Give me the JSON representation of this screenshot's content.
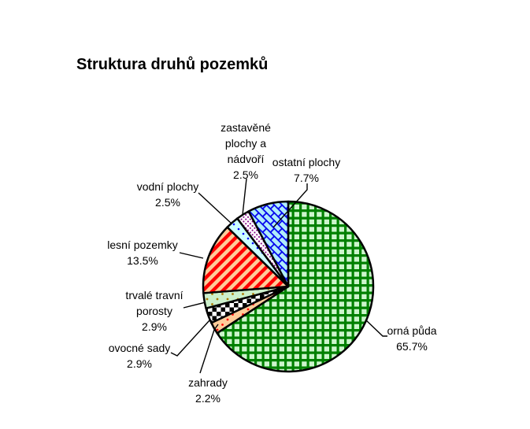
{
  "title": "Struktura druhů pozemků",
  "chart_data": {
    "type": "pie",
    "title": "Struktura druhů pozemků",
    "unit": "%",
    "start_angle_deg": 0,
    "direction": "clockwise",
    "legend": "none",
    "labels_shown_as": "category name and percent with leader lines",
    "slices": [
      {
        "label": "orná půda",
        "value": 65.7,
        "pattern": "green-crosshatch",
        "bg": "#CCF5CC",
        "fg": "#008000"
      },
      {
        "label": "zahrady",
        "value": 2.2,
        "pattern": "peach-red-dots",
        "bg": "#FFCC99",
        "fg": "#FF0000"
      },
      {
        "label": "ovocné sady",
        "value": 2.9,
        "pattern": "checkerboard",
        "bg": "#FFFFFF",
        "fg": "#000000"
      },
      {
        "label": "trvalé travní porosty",
        "value": 2.9,
        "pattern": "green-dots",
        "bg": "#CCF0CC",
        "fg": "#AA7700"
      },
      {
        "label": "lesní pozemky",
        "value": 13.5,
        "pattern": "red-stripes",
        "bg": "#FFCC99",
        "fg": "#FF0000"
      },
      {
        "label": "vodní plochy",
        "value": 2.5,
        "pattern": "cyan-dots",
        "bg": "#CCFFFF",
        "fg": "#0000FF"
      },
      {
        "label": "zastavěné plochy a nádvoří",
        "value": 2.5,
        "pattern": "purple-dots",
        "bg": "#FFFFFF",
        "fg": "#800080"
      },
      {
        "label": "ostatní plochy",
        "value": 7.7,
        "pattern": "blue-diagonal-brick",
        "bg": "#B0ECFA",
        "fg": "#0000EE"
      }
    ]
  },
  "callouts": [
    {
      "name": "zastavene-plochy-a-nadvori",
      "text": "zastavěné\nplochy a\nnádvoří\n2.5%"
    },
    {
      "name": "ostatni-plochy",
      "text": "ostatní plochy\n7.7%"
    },
    {
      "name": "vodni-plochy",
      "text": "vodní plochy\n2.5%"
    },
    {
      "name": "lesni-pozemky",
      "text": "lesní pozemky\n13.5%"
    },
    {
      "name": "trvale-travni-porosty",
      "text": "trvalé travní\nporosty\n2.9%"
    },
    {
      "name": "ovocne-sady",
      "text": "ovocné sady\n2.9%"
    },
    {
      "name": "zahrady",
      "text": "zahrady\n2.2%"
    },
    {
      "name": "orna-puda",
      "text": "orná půda\n65.7%"
    }
  ]
}
